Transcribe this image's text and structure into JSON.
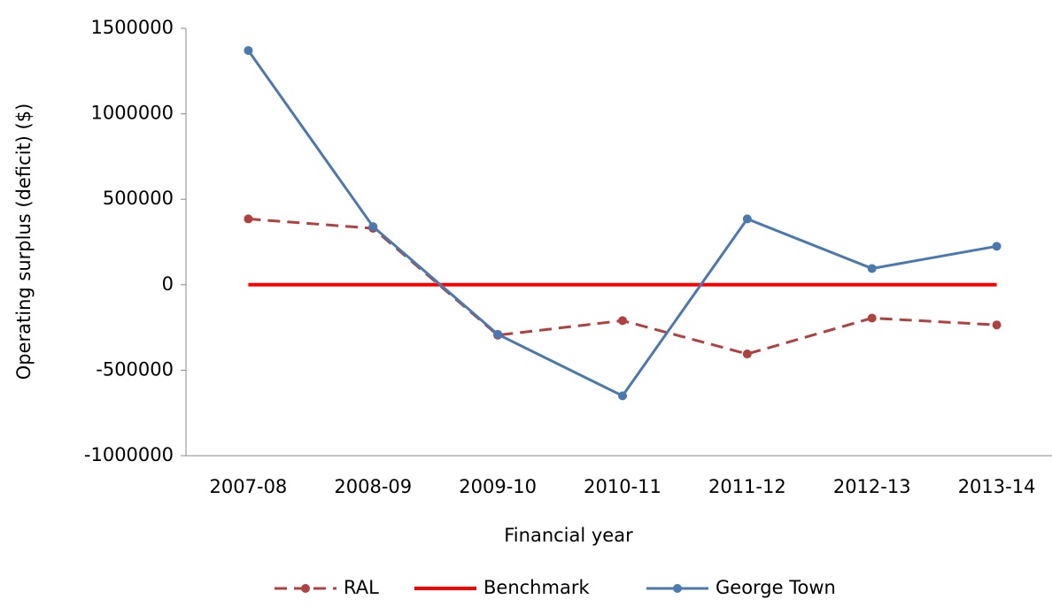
{
  "chart_data": {
    "type": "line",
    "x_label": "Financial year",
    "y_label": "Operating surplus (deficit) ($)",
    "categories": [
      "2007-08",
      "2008-09",
      "2009-10",
      "2010-11",
      "2011-12",
      "2012-13",
      "2013-14"
    ],
    "series": [
      {
        "name": "RAL",
        "color": "#b0413e",
        "dash": true,
        "markers": true,
        "values": [
          385000,
          330000,
          -295000,
          -210000,
          -405000,
          -195000,
          -235000
        ]
      },
      {
        "name": "Benchmark",
        "color": "#ff0000",
        "dash": false,
        "markers": false,
        "values": [
          0,
          0,
          0,
          0,
          0,
          0,
          0
        ]
      },
      {
        "name": "George Town",
        "color": "#4a78b0",
        "dash": false,
        "markers": true,
        "values": [
          1370000,
          340000,
          -290000,
          -650000,
          385000,
          95000,
          225000
        ]
      }
    ],
    "ylim": [
      -1000000,
      1500000
    ],
    "yticks": [
      -1000000,
      -500000,
      0,
      500000,
      1000000,
      1500000
    ],
    "legend": "bottom",
    "grid": false
  }
}
